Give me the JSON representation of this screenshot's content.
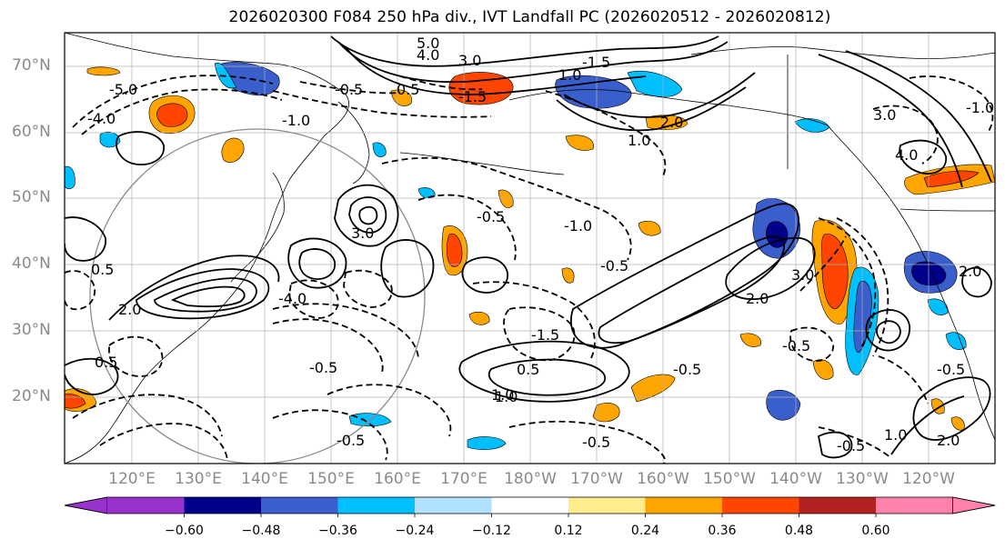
{
  "title": "2026020300 F084 250 hPa div., IVT Landfall PC (2026020512 - 2026020812)",
  "lat_labels": [
    "70°N",
    "60°N",
    "50°N",
    "40°N",
    "30°N",
    "20°N"
  ],
  "lon_labels": [
    "120°E",
    "130°E",
    "140°E",
    "150°E",
    "160°E",
    "170°E",
    "180°W",
    "170°W",
    "160°W",
    "150°W",
    "140°W",
    "130°W",
    "120°W"
  ],
  "colorbar": {
    "ticks": [
      "−0.60",
      "−0.48",
      "−0.36",
      "−0.24",
      "−0.12",
      "0.12",
      "0.24",
      "0.36",
      "0.48",
      "0.60"
    ],
    "colors": [
      "#9932cc",
      "#00008b",
      "#3a5fcd",
      "#00bfff",
      "#b0e2ff",
      "#ffffff",
      "#ffec8b",
      "#ffa500",
      "#ff4500",
      "#b22222",
      "#ff82ab"
    ]
  },
  "contour_labels": [
    {
      "text": "5.0"
    },
    {
      "text": "4.0"
    },
    {
      "text": "3.0"
    },
    {
      "text": "-1.5"
    },
    {
      "text": "-5.0"
    },
    {
      "text": "-4.0"
    },
    {
      "text": "-1.0"
    },
    {
      "text": "-0.5"
    },
    {
      "text": "1.0"
    },
    {
      "text": "0.5"
    },
    {
      "text": "2.0"
    },
    {
      "text": "-1.5"
    },
    {
      "text": "-0.5"
    },
    {
      "text": "-4.0"
    },
    {
      "text": "-0.5"
    },
    {
      "text": "0.5"
    },
    {
      "text": "2.0"
    },
    {
      "text": "3.0"
    },
    {
      "text": "4.0"
    },
    {
      "text": "3.0"
    },
    {
      "text": "1.0"
    },
    {
      "text": "0.5"
    },
    {
      "text": "2.0"
    },
    {
      "text": "-0.5"
    },
    {
      "text": "-0.5"
    },
    {
      "text": "-0.5"
    },
    {
      "text": "-1.0"
    },
    {
      "text": "-1.5"
    },
    {
      "text": "-0.5"
    },
    {
      "text": "0.5"
    },
    {
      "text": "2.0"
    },
    {
      "text": "-0.5"
    },
    {
      "text": "3.0"
    },
    {
      "text": "-0.5"
    },
    {
      "text": "1.0"
    },
    {
      "text": "-0.5"
    },
    {
      "text": "2.0"
    },
    {
      "text": "1.0"
    },
    {
      "text": "-1.0"
    },
    {
      "text": "1.0"
    }
  ]
}
